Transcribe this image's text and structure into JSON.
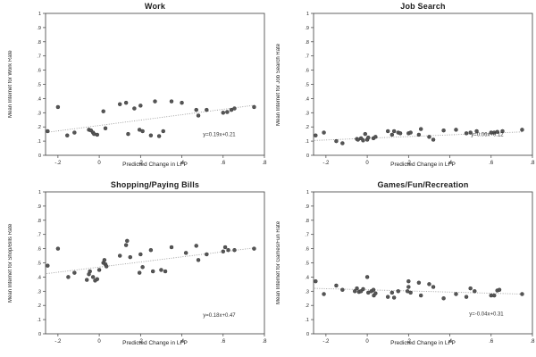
{
  "figure": {
    "background": "#ffffff",
    "point_color": "#565656",
    "point_edge_color": "#3c3c3c",
    "trend_color": "#9a9a9a",
    "axis_color": "#3d3d3d",
    "tick_text_color": "#222222",
    "equation_color": "#333333"
  },
  "chart_data": [
    {
      "type": "scatter",
      "title": "Work",
      "xlabel": "Predicted Change in LFP",
      "ylabel": "Mean Internet for Work Rate",
      "xlim": [
        -0.26,
        0.8
      ],
      "ylim": [
        0,
        1
      ],
      "grid": false,
      "legend": "none",
      "xticks": {
        "values": [
          -0.2,
          0,
          0.2,
          0.4,
          0.6,
          0.8
        ],
        "labels": [
          "-.2",
          "0",
          ".2",
          ".4",
          ".6",
          ".8"
        ]
      },
      "yticks": {
        "values": [
          0,
          0.1,
          0.2,
          0.3,
          0.4,
          0.5,
          0.6,
          0.7,
          0.8,
          0.9,
          1
        ],
        "labels": [
          "0",
          ".1",
          ".2",
          ".3",
          ".4",
          ".5",
          ".6",
          ".7",
          ".8",
          ".9",
          "1"
        ]
      },
      "points": [
        [
          -0.25,
          0.17
        ],
        [
          -0.2,
          0.34
        ],
        [
          -0.155,
          0.14
        ],
        [
          -0.12,
          0.16
        ],
        [
          -0.05,
          0.18
        ],
        [
          -0.04,
          0.175
        ],
        [
          -0.03,
          0.16
        ],
        [
          -0.025,
          0.15
        ],
        [
          -0.01,
          0.145
        ],
        [
          0.02,
          0.31
        ],
        [
          0.03,
          0.19
        ],
        [
          0.1,
          0.36
        ],
        [
          0.13,
          0.37
        ],
        [
          0.14,
          0.15
        ],
        [
          0.17,
          0.33
        ],
        [
          0.195,
          0.18
        ],
        [
          0.2,
          0.35
        ],
        [
          0.21,
          0.17
        ],
        [
          0.25,
          0.14
        ],
        [
          0.27,
          0.38
        ],
        [
          0.29,
          0.135
        ],
        [
          0.31,
          0.17
        ],
        [
          0.35,
          0.38
        ],
        [
          0.4,
          0.37
        ],
        [
          0.47,
          0.32
        ],
        [
          0.48,
          0.28
        ],
        [
          0.52,
          0.32
        ],
        [
          0.6,
          0.3
        ],
        [
          0.62,
          0.305
        ],
        [
          0.64,
          0.32
        ],
        [
          0.655,
          0.33
        ],
        [
          0.75,
          0.34
        ]
      ],
      "trend": {
        "slope": 0.19,
        "intercept": 0.21,
        "x0": -0.255,
        "x1": 0.755
      },
      "equation": {
        "label": "y=0.19x+0.21",
        "x": 0.66,
        "y": 0.135
      }
    },
    {
      "type": "scatter",
      "title": "Job Search",
      "xlabel": "Predicted Change in LFP",
      "ylabel": "Mean Internet for Job Search Rate",
      "xlim": [
        -0.26,
        0.8
      ],
      "ylim": [
        0,
        1
      ],
      "grid": false,
      "legend": "none",
      "xticks": {
        "values": [
          -0.2,
          0,
          0.2,
          0.4,
          0.6,
          0.8
        ],
        "labels": [
          "-.2",
          "0",
          ".2",
          ".4",
          ".6",
          ".8"
        ]
      },
      "yticks": {
        "values": [
          0,
          0.1,
          0.2,
          0.3,
          0.4,
          0.5,
          0.6,
          0.7,
          0.8,
          0.9,
          1
        ],
        "labels": [
          "0",
          ".1",
          ".2",
          ".3",
          ".4",
          ".5",
          ".6",
          ".7",
          ".8",
          ".9",
          "1"
        ]
      },
      "points": [
        [
          -0.25,
          0.14
        ],
        [
          -0.21,
          0.16
        ],
        [
          -0.15,
          0.1
        ],
        [
          -0.12,
          0.085
        ],
        [
          -0.05,
          0.115
        ],
        [
          -0.045,
          0.11
        ],
        [
          -0.03,
          0.12
        ],
        [
          -0.02,
          0.105
        ],
        [
          -0.01,
          0.15
        ],
        [
          0.0,
          0.11
        ],
        [
          0.005,
          0.125
        ],
        [
          0.03,
          0.12
        ],
        [
          0.04,
          0.13
        ],
        [
          0.1,
          0.17
        ],
        [
          0.12,
          0.145
        ],
        [
          0.13,
          0.17
        ],
        [
          0.15,
          0.16
        ],
        [
          0.16,
          0.155
        ],
        [
          0.2,
          0.155
        ],
        [
          0.21,
          0.16
        ],
        [
          0.25,
          0.145
        ],
        [
          0.26,
          0.185
        ],
        [
          0.3,
          0.13
        ],
        [
          0.32,
          0.11
        ],
        [
          0.37,
          0.175
        ],
        [
          0.43,
          0.18
        ],
        [
          0.48,
          0.155
        ],
        [
          0.5,
          0.16
        ],
        [
          0.53,
          0.17
        ],
        [
          0.6,
          0.16
        ],
        [
          0.615,
          0.16
        ],
        [
          0.63,
          0.165
        ],
        [
          0.655,
          0.17
        ],
        [
          0.75,
          0.18
        ]
      ],
      "trend": {
        "slope": 0.06,
        "intercept": 0.12,
        "x0": -0.255,
        "x1": 0.755
      },
      "equation": {
        "label": "y=0.06x+0.12",
        "x": 0.66,
        "y": 0.135
      }
    },
    {
      "type": "scatter",
      "title": "Shopping/Paying Bills",
      "xlabel": "Predicted Change in LFP",
      "ylabel": "Mean Internet for Shop/Bills Rate",
      "xlim": [
        -0.26,
        0.8
      ],
      "ylim": [
        0,
        1
      ],
      "grid": false,
      "legend": "none",
      "xticks": {
        "values": [
          -0.2,
          0,
          0.2,
          0.4,
          0.6,
          0.8
        ],
        "labels": [
          "-.2",
          "0",
          ".2",
          ".4",
          ".6",
          ".8"
        ]
      },
      "yticks": {
        "values": [
          0,
          0.1,
          0.2,
          0.3,
          0.4,
          0.5,
          0.6,
          0.7,
          0.8,
          0.9,
          1
        ],
        "labels": [
          "0",
          ".1",
          ".2",
          ".3",
          ".4",
          ".5",
          ".6",
          ".7",
          ".8",
          ".9",
          "1"
        ]
      },
      "points": [
        [
          -0.25,
          0.48
        ],
        [
          -0.2,
          0.6
        ],
        [
          -0.15,
          0.4
        ],
        [
          -0.12,
          0.43
        ],
        [
          -0.06,
          0.38
        ],
        [
          -0.05,
          0.42
        ],
        [
          -0.045,
          0.44
        ],
        [
          -0.03,
          0.4
        ],
        [
          -0.02,
          0.375
        ],
        [
          -0.01,
          0.385
        ],
        [
          0.0,
          0.45
        ],
        [
          0.02,
          0.5
        ],
        [
          0.025,
          0.52
        ],
        [
          0.03,
          0.49
        ],
        [
          0.035,
          0.475
        ],
        [
          0.1,
          0.55
        ],
        [
          0.13,
          0.625
        ],
        [
          0.135,
          0.655
        ],
        [
          0.15,
          0.54
        ],
        [
          0.195,
          0.43
        ],
        [
          0.2,
          0.56
        ],
        [
          0.21,
          0.47
        ],
        [
          0.25,
          0.59
        ],
        [
          0.26,
          0.44
        ],
        [
          0.3,
          0.45
        ],
        [
          0.32,
          0.44
        ],
        [
          0.35,
          0.61
        ],
        [
          0.42,
          0.57
        ],
        [
          0.47,
          0.62
        ],
        [
          0.48,
          0.52
        ],
        [
          0.52,
          0.56
        ],
        [
          0.6,
          0.58
        ],
        [
          0.61,
          0.61
        ],
        [
          0.625,
          0.59
        ],
        [
          0.655,
          0.59
        ],
        [
          0.75,
          0.6
        ]
      ],
      "trend": {
        "slope": 0.18,
        "intercept": 0.47,
        "x0": -0.255,
        "x1": 0.755
      },
      "equation": {
        "label": "y=0.18x+0.47",
        "x": 0.66,
        "y": 0.12
      }
    },
    {
      "type": "scatter",
      "title": "Games/Fun/Recreation",
      "xlabel": "Predicted Change in LFP",
      "ylabel": "Mean Internet for Games/Fun Rate",
      "xlim": [
        -0.26,
        0.8
      ],
      "ylim": [
        0,
        1
      ],
      "grid": false,
      "legend": "none",
      "xticks": {
        "values": [
          -0.2,
          0,
          0.2,
          0.4,
          0.6,
          0.8
        ],
        "labels": [
          "-.2",
          "0",
          ".2",
          ".4",
          ".6",
          ".8"
        ]
      },
      "yticks": {
        "values": [
          0,
          0.1,
          0.2,
          0.3,
          0.4,
          0.5,
          0.6,
          0.7,
          0.8,
          0.9,
          1
        ],
        "labels": [
          "0",
          ".1",
          ".2",
          ".3",
          ".4",
          ".5",
          ".6",
          ".7",
          ".8",
          ".9",
          "1"
        ]
      },
      "points": [
        [
          -0.25,
          0.37
        ],
        [
          -0.21,
          0.28
        ],
        [
          -0.15,
          0.34
        ],
        [
          -0.12,
          0.31
        ],
        [
          -0.06,
          0.3
        ],
        [
          -0.05,
          0.32
        ],
        [
          -0.04,
          0.295
        ],
        [
          -0.03,
          0.3
        ],
        [
          -0.02,
          0.315
        ],
        [
          0.0,
          0.4
        ],
        [
          0.005,
          0.29
        ],
        [
          0.02,
          0.3
        ],
        [
          0.03,
          0.31
        ],
        [
          0.032,
          0.27
        ],
        [
          0.04,
          0.285
        ],
        [
          0.1,
          0.26
        ],
        [
          0.12,
          0.29
        ],
        [
          0.13,
          0.255
        ],
        [
          0.15,
          0.3
        ],
        [
          0.195,
          0.3
        ],
        [
          0.2,
          0.37
        ],
        [
          0.2,
          0.33
        ],
        [
          0.21,
          0.29
        ],
        [
          0.25,
          0.36
        ],
        [
          0.26,
          0.27
        ],
        [
          0.3,
          0.35
        ],
        [
          0.32,
          0.33
        ],
        [
          0.37,
          0.25
        ],
        [
          0.43,
          0.28
        ],
        [
          0.48,
          0.26
        ],
        [
          0.5,
          0.32
        ],
        [
          0.52,
          0.3
        ],
        [
          0.6,
          0.27
        ],
        [
          0.615,
          0.27
        ],
        [
          0.63,
          0.305
        ],
        [
          0.64,
          0.31
        ],
        [
          0.75,
          0.28
        ]
      ],
      "trend": {
        "slope": -0.04,
        "intercept": 0.31,
        "x0": -0.255,
        "x1": 0.755
      },
      "equation": {
        "label": "y=-0.04x+0.31",
        "x": 0.66,
        "y": 0.13
      }
    }
  ]
}
